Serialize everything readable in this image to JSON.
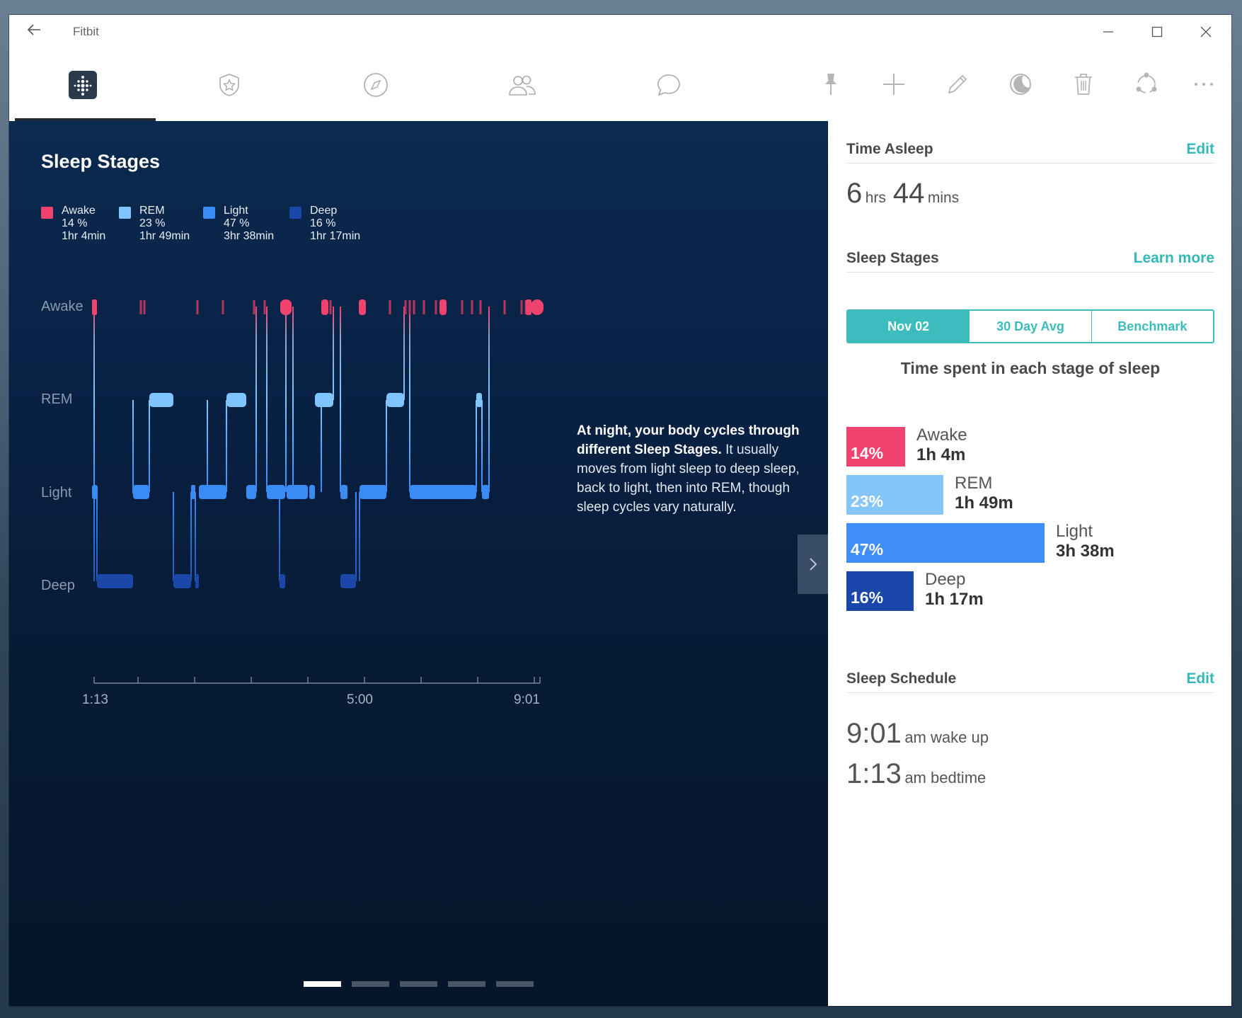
{
  "app": {
    "title": "Fitbit"
  },
  "left": {
    "title": "Sleep Stages",
    "legend": [
      {
        "name": "Awake",
        "pct": "14 %",
        "duration": "1hr 4min",
        "color": "#f0426f"
      },
      {
        "name": "REM",
        "pct": "23 %",
        "duration": "1hr 49min",
        "color": "#7fc3ff"
      },
      {
        "name": "Light",
        "pct": "47 %",
        "duration": "3hr 38min",
        "color": "#3b8bf5"
      },
      {
        "name": "Deep",
        "pct": "16 %",
        "duration": "1hr 17min",
        "color": "#1a47a8"
      }
    ],
    "chart_labels": {
      "awake": "Awake",
      "rem": "REM",
      "light": "Light",
      "deep": "Deep"
    },
    "ticks": {
      "start": "1:13",
      "mid": "5:00",
      "end": "9:01"
    },
    "desc_bold": "At night, your body cycles through different Sleep Stages.",
    "desc_rest": " It usually moves from light sleep to deep sleep, back to light, then into REM, though sleep cycles vary naturally."
  },
  "right": {
    "time_asleep": {
      "title": "Time Asleep",
      "edit": "Edit",
      "hrs": "6",
      "hrs_unit": "hrs",
      "mins": "44",
      "mins_unit": "mins"
    },
    "stages": {
      "title": "Sleep Stages",
      "link": "Learn more",
      "tabs": [
        "Nov 02",
        "30 Day Avg",
        "Benchmark"
      ],
      "subtitle": "Time spent in each stage of sleep",
      "bars": [
        {
          "name": "Awake",
          "pct": "14%",
          "value": 14,
          "duration": "1h 4m",
          "color": "#f0426f"
        },
        {
          "name": "REM",
          "pct": "23%",
          "value": 23,
          "duration": "1h 49m",
          "color": "#85c5fa"
        },
        {
          "name": "Light",
          "pct": "47%",
          "value": 47,
          "duration": "3h 38m",
          "color": "#3f8ef7"
        },
        {
          "name": "Deep",
          "pct": "16%",
          "value": 16,
          "duration": "1h 17m",
          "color": "#1946a8"
        }
      ]
    },
    "schedule": {
      "title": "Sleep Schedule",
      "edit": "Edit",
      "wake_time": "9:01",
      "wake_label": "am wake up",
      "bed_time": "1:13",
      "bed_label": "am bedtime"
    }
  }
}
